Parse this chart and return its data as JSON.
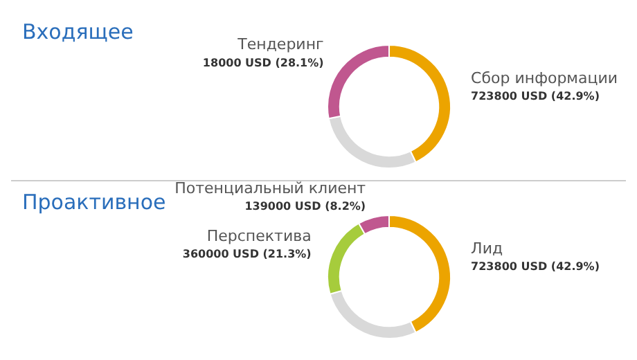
{
  "chart_data": [
    {
      "type": "donut",
      "title": "Входящее",
      "categories": [
        "Сбор информации",
        null,
        "Тендеринг"
      ],
      "values": [
        42.9,
        29.0,
        28.1
      ],
      "colors": [
        "#eca400",
        "#d9d9d9",
        "#c0578f"
      ],
      "value_labels": [
        "723800 USD (42.9%)",
        null,
        "18000 USD (28.1%)"
      ],
      "legend": false
    },
    {
      "type": "donut",
      "title": "Проактивное",
      "categories": [
        "Лид",
        null,
        "Перспектива",
        "Потенциальный клиент"
      ],
      "values": [
        42.9,
        27.6,
        21.3,
        8.2
      ],
      "colors": [
        "#eca400",
        "#d9d9d9",
        "#a6cc3c",
        "#c0578f"
      ],
      "value_labels": [
        "723800 USD (42.9%)",
        null,
        "360000 USD (21.3%)",
        "139000 USD (8.2%)"
      ],
      "legend": false
    }
  ]
}
